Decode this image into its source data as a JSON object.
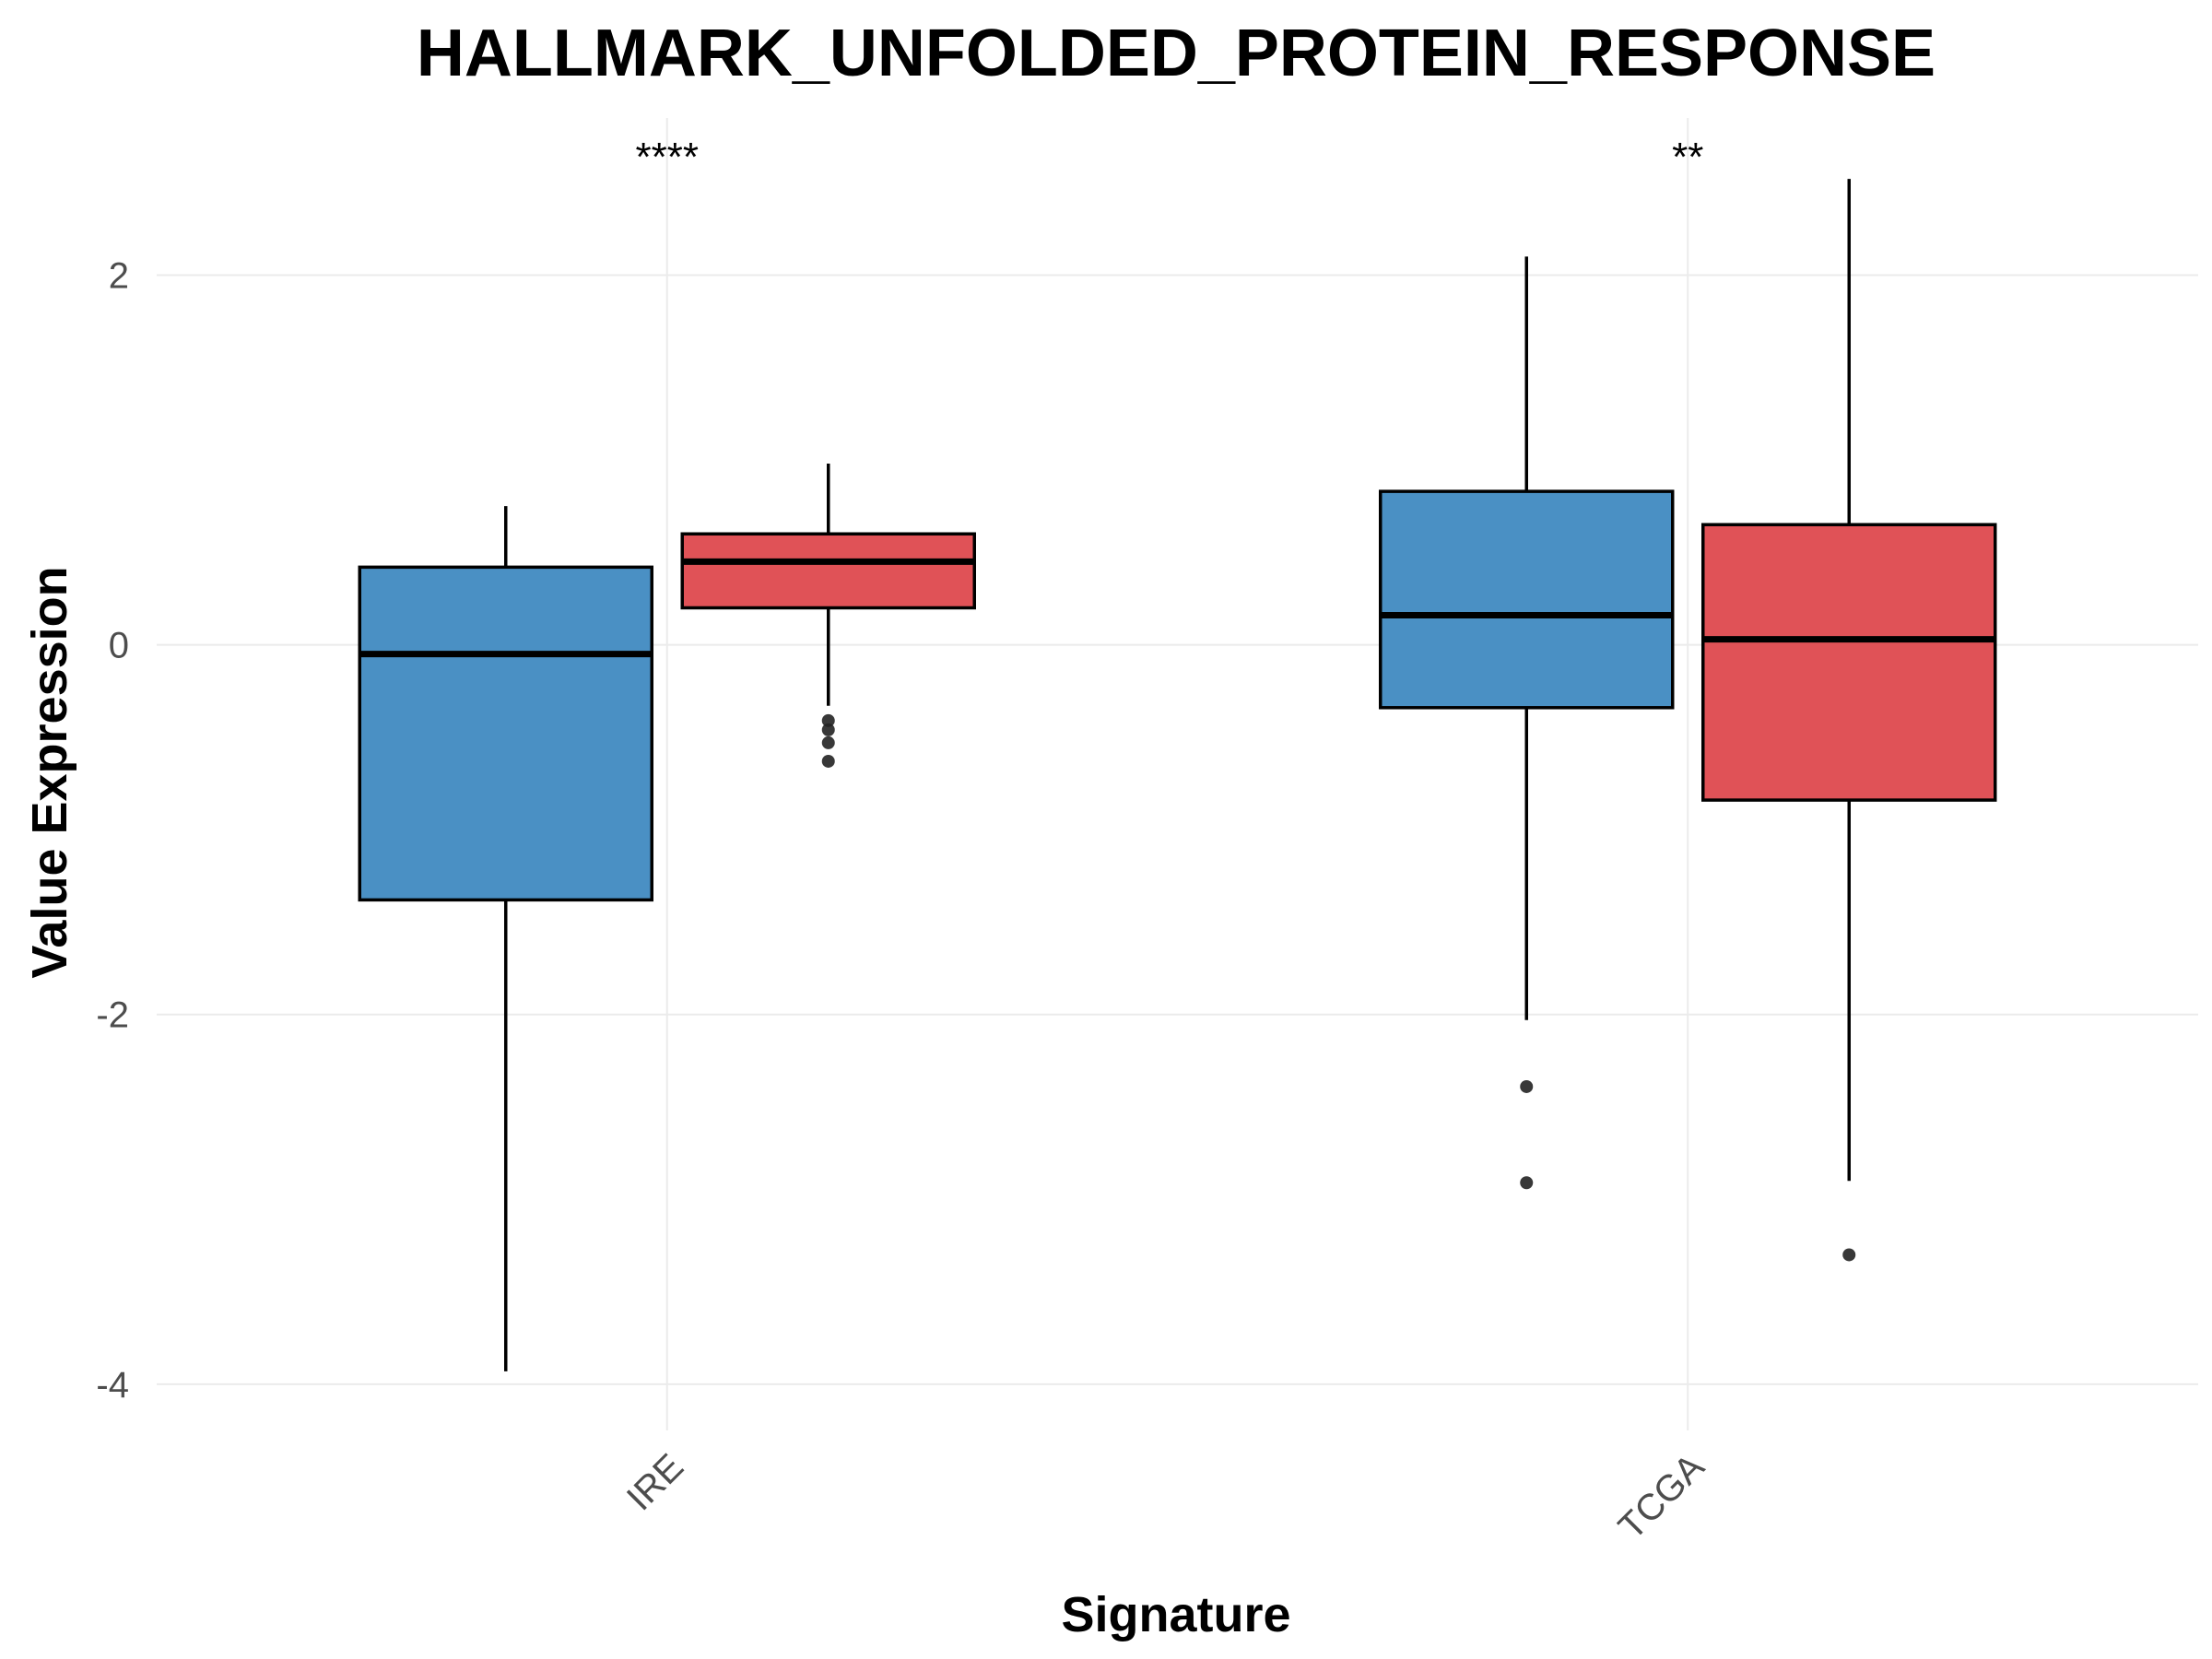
{
  "chart_data": {
    "type": "box",
    "title": "HALLMARK_UNFOLDED_PROTEIN_RESPONSE",
    "xlabel": "Signature",
    "ylabel": "Value Expression",
    "categories": [
      "IRE",
      "TCGA"
    ],
    "ylim": [
      -4.25,
      2.85
    ],
    "yticks": [
      -4,
      -2,
      0,
      2
    ],
    "yticklabels": [
      "-4",
      "-2",
      "0",
      "2"
    ],
    "grid": true,
    "legend": "none",
    "significance": [
      "****",
      "**"
    ],
    "series": [
      {
        "color": "#4a90c4",
        "boxes": [
          {
            "category": "IRE",
            "whisker_low": -3.93,
            "q1": -1.38,
            "median": -0.05,
            "q3": 0.42,
            "whisker_high": 0.75,
            "outliers": []
          },
          {
            "category": "TCGA",
            "whisker_low": -2.03,
            "q1": -0.34,
            "median": 0.16,
            "q3": 0.83,
            "whisker_high": 2.1,
            "outliers": [
              -2.39,
              -2.91
            ]
          }
        ]
      },
      {
        "color": "#e05257",
        "boxes": [
          {
            "category": "IRE",
            "whisker_low": -0.33,
            "q1": 0.2,
            "median": 0.45,
            "q3": 0.6,
            "whisker_high": 0.98,
            "outliers": [
              -0.41,
              -0.46,
              -0.53,
              -0.63
            ]
          },
          {
            "category": "TCGA",
            "whisker_low": -2.9,
            "q1": -0.84,
            "median": 0.03,
            "q3": 0.65,
            "whisker_high": 2.52,
            "outliers": [
              -3.3
            ]
          }
        ]
      }
    ]
  }
}
